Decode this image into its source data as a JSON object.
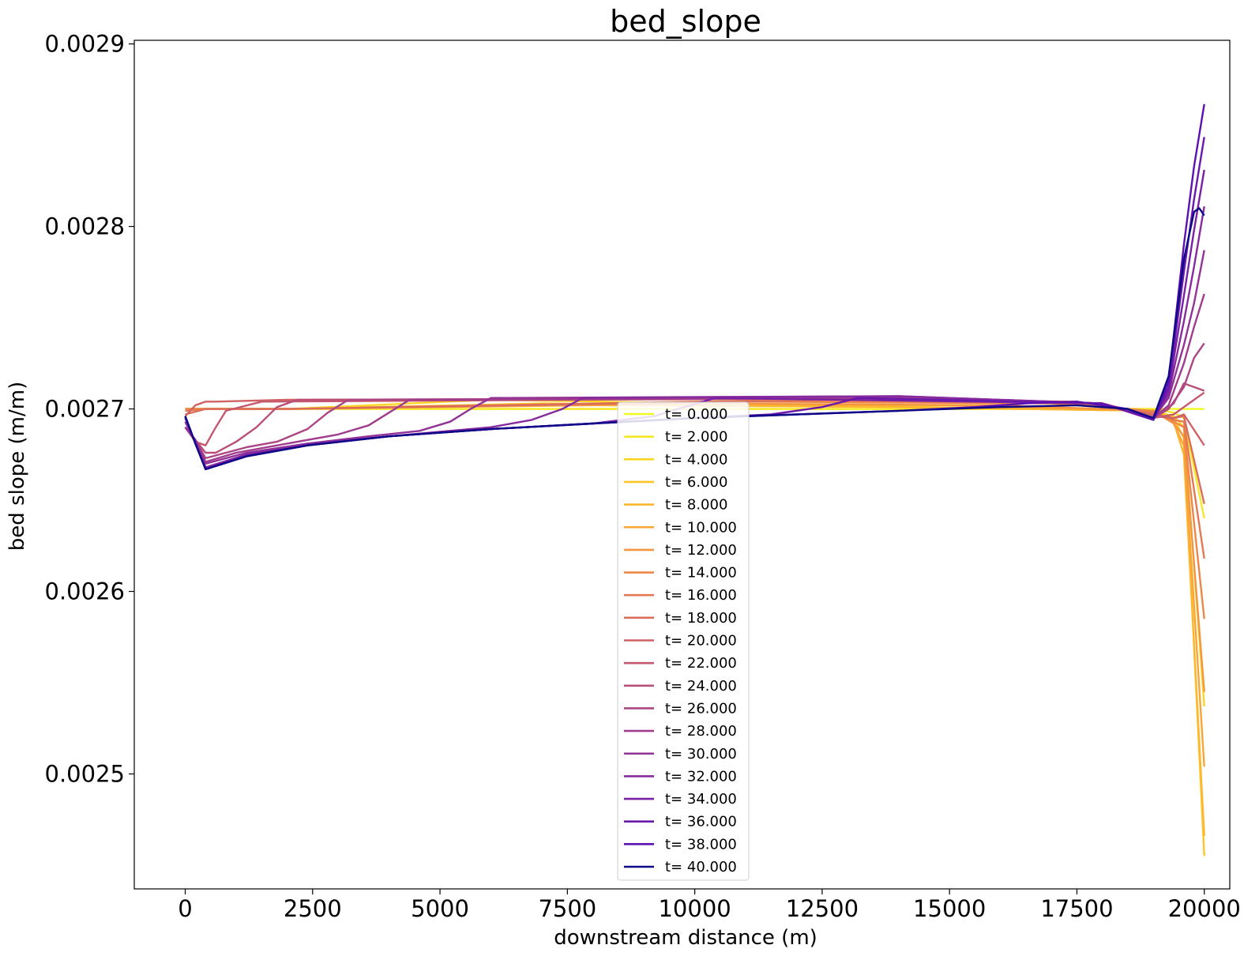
{
  "chart_data": {
    "type": "line",
    "title": "bed_slope",
    "xlabel": "downstream distance (m)",
    "ylabel": "bed slope (m/m)",
    "xlim": [
      -1000,
      20500
    ],
    "ylim": [
      0.002437,
      0.002902
    ],
    "xticks": [
      0,
      2500,
      5000,
      7500,
      10000,
      12500,
      15000,
      17500,
      20000
    ],
    "xtick_labels": [
      "0",
      "2500",
      "5000",
      "7500",
      "10000",
      "12500",
      "15000",
      "17500",
      "20000"
    ],
    "yticks": [
      0.0025,
      0.0026,
      0.0027,
      0.0028,
      0.0029
    ],
    "ytick_labels": [
      "0.0025",
      "0.0026",
      "0.0027",
      "0.0028",
      "0.0029"
    ],
    "grid": false,
    "legend_position": "center-bottom",
    "colormap": "plasma",
    "series": [
      {
        "name": "t= 0.000",
        "color": "#f0f921",
        "x": [
          0,
          19000,
          20000
        ],
        "y": [
          0.0027,
          0.0027,
          0.0027
        ]
      },
      {
        "name": "t= 2.000",
        "color": "#f6e826",
        "x": [
          0,
          400,
          19000,
          19400,
          19600,
          20000
        ],
        "y": [
          0.0027,
          0.0027,
          0.0027,
          0.002698,
          0.002695,
          0.00264
        ]
      },
      {
        "name": "t= 4.000",
        "color": "#fbd724",
        "x": [
          0,
          400,
          2000,
          6000,
          19000,
          19400,
          19600,
          20000
        ],
        "y": [
          0.0027,
          0.0027,
          0.0027,
          0.002705,
          0.002699,
          0.002696,
          0.00269,
          0.002537
        ]
      },
      {
        "name": "t= 6.000",
        "color": "#fdc627",
        "x": [
          0,
          400,
          2000,
          7000,
          14000,
          19000,
          19400,
          19600,
          20000
        ],
        "y": [
          0.0027,
          0.0027,
          0.0027,
          0.002703,
          0.002701,
          0.002699,
          0.002695,
          0.002684,
          0.002455
        ]
      },
      {
        "name": "t= 8.000",
        "color": "#fcb72f",
        "x": [
          0,
          400,
          2000,
          8000,
          14000,
          19000,
          19400,
          19600,
          20000
        ],
        "y": [
          0.0027,
          0.0027,
          0.0027,
          0.002702,
          0.002701,
          0.002699,
          0.002693,
          0.002675,
          0.002466
        ]
      },
      {
        "name": "t= 10.000",
        "color": "#f9a636",
        "x": [
          0,
          400,
          2000,
          9000,
          15000,
          19000,
          19400,
          19600,
          20000
        ],
        "y": [
          0.0027,
          0.0027,
          0.0027,
          0.002703,
          0.002702,
          0.002699,
          0.002692,
          0.00268,
          0.002504
        ]
      },
      {
        "name": "t= 12.000",
        "color": "#f4963f",
        "x": [
          0,
          400,
          2000,
          10000,
          16000,
          19000,
          19400,
          19600,
          20000
        ],
        "y": [
          0.0027,
          0.0027,
          0.0027,
          0.002703,
          0.002702,
          0.002699,
          0.002692,
          0.002685,
          0.002545
        ]
      },
      {
        "name": "t= 14.000",
        "color": "#ed8747",
        "x": [
          0,
          400,
          2000,
          11000,
          17000,
          19000,
          19400,
          19600,
          20000
        ],
        "y": [
          0.0027,
          0.0027,
          0.0027,
          0.002704,
          0.002703,
          0.002699,
          0.002693,
          0.00269,
          0.002585
        ]
      },
      {
        "name": "t= 16.000",
        "color": "#e47a51",
        "x": [
          0,
          400,
          2000,
          12000,
          17500,
          19000,
          19400,
          19600,
          20000
        ],
        "y": [
          0.002699,
          0.0027,
          0.0027,
          0.002705,
          0.002703,
          0.002698,
          0.002694,
          0.002693,
          0.002618
        ]
      },
      {
        "name": "t= 18.000",
        "color": "#db6e5b",
        "x": [
          0,
          400,
          2000,
          13000,
          17500,
          19000,
          19400,
          19600,
          20000
        ],
        "y": [
          0.002697,
          0.0027,
          0.0027,
          0.002705,
          0.002704,
          0.002697,
          0.002695,
          0.002696,
          0.002648
        ]
      },
      {
        "name": "t= 20.000",
        "color": "#d06265",
        "x": [
          0,
          200,
          400,
          600,
          2000,
          14000,
          18000,
          19000,
          19400,
          19600,
          20000
        ],
        "y": [
          0.002696,
          0.002702,
          0.002704,
          0.002704,
          0.002705,
          0.002706,
          0.002703,
          0.002696,
          0.002695,
          0.002697,
          0.00268
        ]
      },
      {
        "name": "t= 22.000",
        "color": "#c5586f",
        "x": [
          0,
          200,
          400,
          600,
          800,
          1500,
          14000,
          18000,
          19000,
          19400,
          19600,
          20000
        ],
        "y": [
          0.00269,
          0.002682,
          0.00268,
          0.00269,
          0.002699,
          0.002704,
          0.002706,
          0.002703,
          0.002695,
          0.002697,
          0.002701,
          0.002709
        ]
      },
      {
        "name": "t= 24.000",
        "color": "#b94e79",
        "x": [
          0,
          200,
          400,
          600,
          1000,
          1400,
          1800,
          2200,
          14000,
          18000,
          19000,
          19400,
          19600,
          20000
        ],
        "y": [
          0.00269,
          0.002683,
          0.002676,
          0.002676,
          0.002682,
          0.00269,
          0.002701,
          0.002705,
          0.002706,
          0.002703,
          0.002695,
          0.002703,
          0.002714,
          0.00271
        ]
      },
      {
        "name": "t= 26.000",
        "color": "#ac4583",
        "x": [
          0,
          200,
          400,
          800,
          1200,
          1800,
          2400,
          2800,
          3200,
          14000,
          18000,
          19000,
          19300,
          19600,
          19800,
          20000
        ],
        "y": [
          0.00269,
          0.002683,
          0.002673,
          0.002676,
          0.002679,
          0.002682,
          0.002689,
          0.002698,
          0.002705,
          0.002706,
          0.002703,
          0.002695,
          0.0027,
          0.002712,
          0.002728,
          0.002736
        ]
      },
      {
        "name": "t= 28.000",
        "color": "#a03c8d",
        "x": [
          0,
          200,
          400,
          1000,
          2000,
          3000,
          3600,
          4000,
          4400,
          14000,
          18000,
          19000,
          19300,
          19600,
          19800,
          20000
        ],
        "y": [
          0.00269,
          0.002683,
          0.002671,
          0.002676,
          0.002681,
          0.002686,
          0.002691,
          0.002698,
          0.002705,
          0.002706,
          0.002703,
          0.002695,
          0.002702,
          0.002725,
          0.002745,
          0.002763
        ]
      },
      {
        "name": "t= 30.000",
        "color": "#933396",
        "x": [
          0,
          200,
          400,
          1200,
          2400,
          3600,
          4600,
          5200,
          5600,
          6000,
          14000,
          18000,
          19000,
          19300,
          19600,
          19800,
          20000
        ],
        "y": [
          0.00269,
          0.002683,
          0.00267,
          0.002676,
          0.002681,
          0.002685,
          0.002688,
          0.002693,
          0.0027,
          0.002706,
          0.002707,
          0.002703,
          0.002695,
          0.002706,
          0.002735,
          0.002758,
          0.002787
        ]
      },
      {
        "name": "t= 32.000",
        "color": "#862a9e",
        "x": [
          0,
          200,
          400,
          1200,
          2400,
          4000,
          6000,
          6800,
          7400,
          7800,
          14000,
          18000,
          19000,
          19300,
          19600,
          19800,
          20000
        ],
        "y": [
          0.002693,
          0.002682,
          0.002668,
          0.002675,
          0.002681,
          0.002685,
          0.00269,
          0.002694,
          0.0027,
          0.002706,
          0.002707,
          0.002703,
          0.002694,
          0.002708,
          0.002748,
          0.002778,
          0.002811
        ]
      },
      {
        "name": "t= 34.000",
        "color": "#7821a5",
        "x": [
          0,
          200,
          400,
          1200,
          2400,
          4000,
          6000,
          8000,
          9200,
          9800,
          10400,
          18000,
          19000,
          19300,
          19600,
          19800,
          20000
        ],
        "y": [
          0.002695,
          0.002681,
          0.002667,
          0.002675,
          0.00268,
          0.002685,
          0.002689,
          0.002692,
          0.002696,
          0.002701,
          0.002706,
          0.002703,
          0.002694,
          0.00271,
          0.002762,
          0.002798,
          0.002831
        ]
      },
      {
        "name": "t= 36.000",
        "color": "#6a18ac",
        "x": [
          0,
          200,
          400,
          1200,
          2400,
          4000,
          6000,
          8000,
          10000,
          11500,
          12500,
          13200,
          18000,
          19000,
          19300,
          19600,
          19800,
          20000
        ],
        "y": [
          0.002696,
          0.002681,
          0.002667,
          0.002674,
          0.00268,
          0.002685,
          0.002689,
          0.002692,
          0.002695,
          0.002697,
          0.002701,
          0.002706,
          0.002703,
          0.002694,
          0.002712,
          0.002775,
          0.002815,
          0.002849
        ]
      },
      {
        "name": "t= 38.000",
        "color": "#5b10b1",
        "x": [
          0,
          200,
          400,
          1200,
          2400,
          4000,
          6000,
          8000,
          10000,
          12000,
          14000,
          15500,
          16500,
          17500,
          18500,
          19000,
          19300,
          19600,
          19800,
          20000
        ],
        "y": [
          0.002696,
          0.002681,
          0.002667,
          0.002674,
          0.00268,
          0.002685,
          0.002689,
          0.002692,
          0.002695,
          0.002697,
          0.002699,
          0.002701,
          0.002703,
          0.002704,
          0.0027,
          0.002694,
          0.002715,
          0.00279,
          0.002833,
          0.002867
        ]
      },
      {
        "name": "t= 40.000",
        "color": "#0d0887",
        "x": [
          0,
          200,
          400,
          1200,
          2400,
          4000,
          6000,
          8000,
          10000,
          12000,
          14000,
          16000,
          17500,
          18500,
          19000,
          19300,
          19600,
          19800,
          19900,
          20000
        ],
        "y": [
          0.002696,
          0.002681,
          0.002667,
          0.002674,
          0.00268,
          0.002685,
          0.002689,
          0.002692,
          0.002695,
          0.002697,
          0.002699,
          0.002701,
          0.002702,
          0.0027,
          0.002695,
          0.002718,
          0.002782,
          0.002808,
          0.00281,
          0.002806
        ]
      }
    ]
  }
}
